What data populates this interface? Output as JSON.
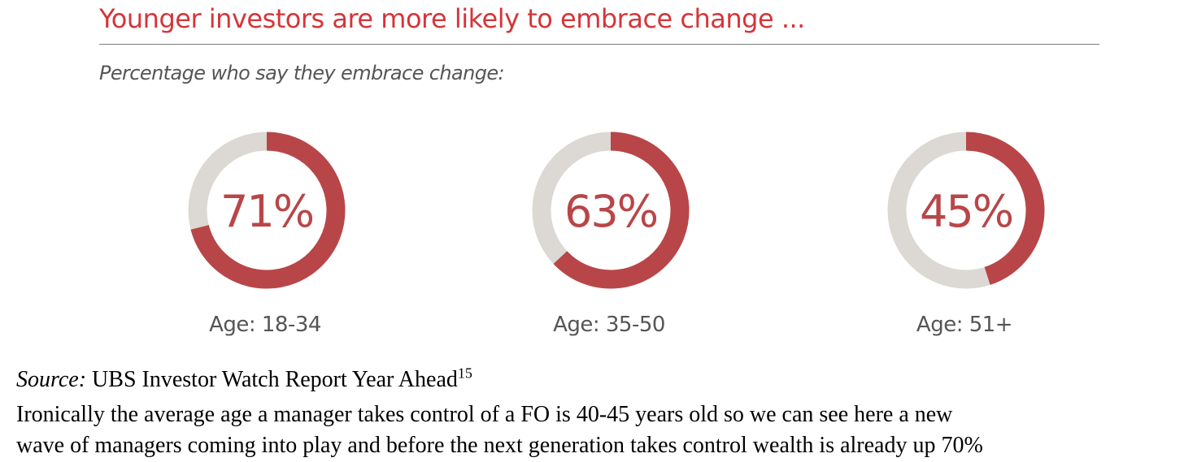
{
  "colors": {
    "accent": "#b84648",
    "track": "#dcd8d3",
    "title": "#d5353a",
    "label": "#555555"
  },
  "chart_data": {
    "type": "pie",
    "title": "Younger investors are more likely to embrace change ...",
    "subtitle": "Percentage who say they embrace change:",
    "items": [
      {
        "label": "Age: 18-34",
        "value": 71,
        "display": "71%"
      },
      {
        "label": "Age: 35-50",
        "value": 63,
        "display": "63%"
      },
      {
        "label": "Age: 51+",
        "value": 45,
        "display": "45%"
      }
    ]
  },
  "source": {
    "prefix": "Source:",
    "text": " UBS Investor Watch Report Year Ahead",
    "footnote": "15"
  },
  "body": {
    "line1": "Ironically the average age a manager takes control of a FO is 40-45 years old so we can see here a new",
    "line2": "wave of managers coming into play and before the next generation takes control wealth is already up 70%"
  }
}
